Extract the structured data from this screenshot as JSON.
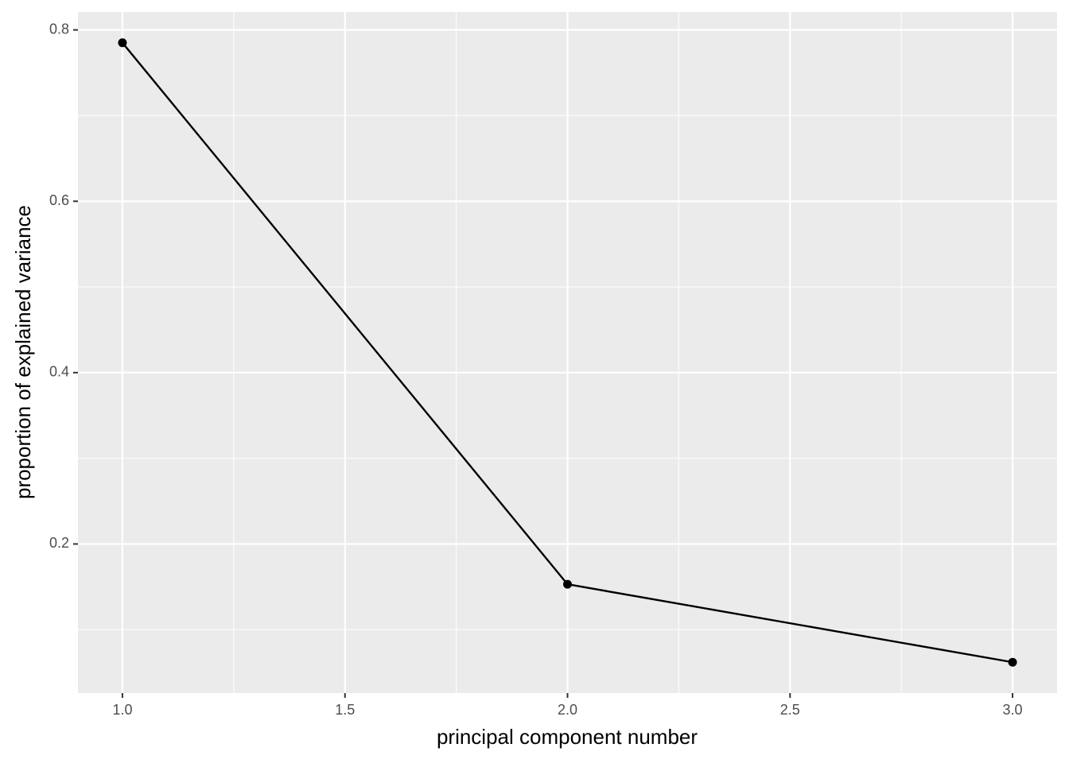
{
  "chart_data": {
    "type": "line",
    "x_label": "principal component number",
    "y_label": "proportion of explained variance",
    "x": [
      1,
      2,
      3
    ],
    "series": [
      {
        "name": "explained variance",
        "color": "#000000",
        "values": [
          0.785,
          0.153,
          0.062
        ]
      }
    ],
    "xlim": [
      0.9,
      3.1
    ],
    "xticks": [
      {
        "value": 1,
        "label": "1.0"
      },
      1.5,
      {
        "value": 2,
        "label": "2.0"
      },
      2.5,
      {
        "value": 3,
        "label": "3.0"
      }
    ],
    "ylim": [
      0.026,
      0.821
    ],
    "yticks": [
      0.2,
      0.4,
      0.6,
      0.8
    ],
    "grid": true,
    "markers": true
  }
}
